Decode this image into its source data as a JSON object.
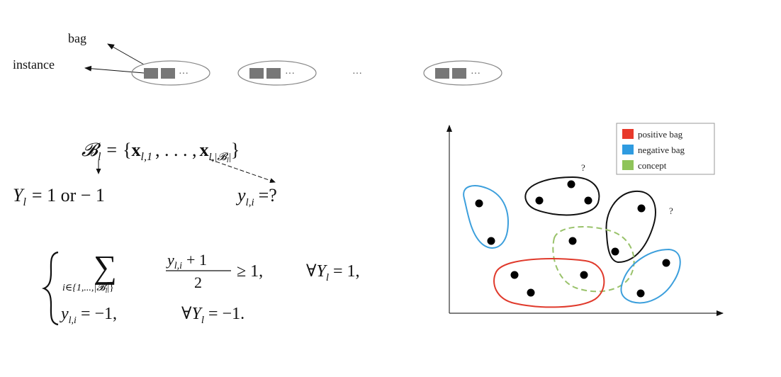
{
  "labels": {
    "bag": "bag",
    "instance": "instance",
    "ellipsis": "···"
  },
  "formulas": {
    "bag_def": {
      "lhs": "𝓑",
      "lhs_sub": "l",
      "eq": "=",
      "open": "{",
      "x1": "x",
      "x1_sub": "l,1",
      "dots": ", . . . ,",
      "x2": "x",
      "x2_sub": "l,|𝓑",
      "x2_sub_end": "l",
      "x2_close": "|",
      "close": "}"
    },
    "bag_label": {
      "y": "Y",
      "sub": "l",
      "rest": "= 1  or  − 1"
    },
    "inst_label": {
      "y": "y",
      "sub": "l,i",
      "rest": "=?"
    },
    "constraint": {
      "sum": "∑",
      "sum_index": "i∈{1,...,|𝓑",
      "sum_index_sub": "l",
      "sum_index_end": "|}",
      "numerator": "y",
      "numerator_sub": "l,i",
      "numerator_rest": "+ 1",
      "denominator": "2",
      "cond1": "≥ 1,",
      "forall1": "∀Y",
      "forall1_sub": "l",
      "forall1_rest": "= 1,",
      "line2_y": "y",
      "line2_sub": "l,i",
      "line2_rest": "= −1,",
      "forall2": "∀Y",
      "forall2_sub": "l",
      "forall2_rest": "= −1."
    }
  },
  "legend": {
    "items": [
      {
        "label": "positive bag",
        "color": "#e8392b"
      },
      {
        "label": "negative bag",
        "color": "#2f9be0"
      },
      {
        "label": "concept",
        "color": "#8fc45a"
      }
    ]
  },
  "plot": {
    "question_marks": [
      "?",
      "?"
    ],
    "colors": {
      "positive": "#e03a2c",
      "negative": "#3c9fdc",
      "concept": "#99c26a",
      "unknown": "#111111",
      "point": "#000000"
    }
  }
}
